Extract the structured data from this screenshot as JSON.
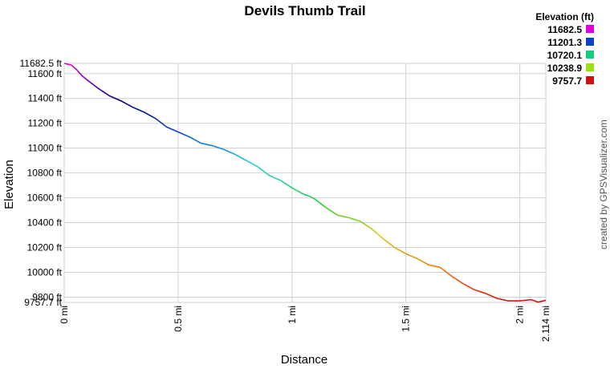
{
  "chart_data": {
    "type": "line",
    "title": "Devils Thumb Trail",
    "x_label": "Distance",
    "y_label": "Elevation",
    "credit": "created by GPSVisualizer.com",
    "x": [
      0,
      0.03,
      0.05,
      0.08,
      0.1,
      0.15,
      0.2,
      0.25,
      0.3,
      0.35,
      0.4,
      0.45,
      0.5,
      0.55,
      0.6,
      0.65,
      0.7,
      0.75,
      0.8,
      0.85,
      0.9,
      0.95,
      1.0,
      1.05,
      1.08,
      1.1,
      1.15,
      1.2,
      1.25,
      1.3,
      1.35,
      1.4,
      1.45,
      1.5,
      1.55,
      1.6,
      1.65,
      1.7,
      1.75,
      1.8,
      1.85,
      1.9,
      1.95,
      2.0,
      2.05,
      2.08,
      2.114
    ],
    "series": [
      {
        "name": "Elevation",
        "values": [
          11682.5,
          11670,
          11640,
          11580,
          11550,
          11480,
          11420,
          11380,
          11330,
          11290,
          11240,
          11170,
          11130,
          11090,
          11040,
          11020,
          10990,
          10950,
          10900,
          10850,
          10780,
          10740,
          10680,
          10630,
          10610,
          10590,
          10520,
          10460,
          10440,
          10410,
          10350,
          10270,
          10200,
          10150,
          10110,
          10060,
          10040,
          9970,
          9910,
          9860,
          9830,
          9790,
          9770,
          9770,
          9780,
          9760,
          9775
        ]
      }
    ],
    "xlim": [
      0,
      2.114
    ],
    "ylim": [
      9757.7,
      11682.5
    ],
    "xticks": [
      {
        "value": 0,
        "label": "0 mi"
      },
      {
        "value": 0.5,
        "label": "0.5 mi"
      },
      {
        "value": 1,
        "label": "1 mi"
      },
      {
        "value": 1.5,
        "label": "1.5 mi"
      },
      {
        "value": 2,
        "label": "2 mi"
      },
      {
        "value": 2.114,
        "label": "2.114 mi"
      }
    ],
    "yticks": [
      {
        "value": 9757.7,
        "label": "9757.7 ft"
      },
      {
        "value": 9800,
        "label": "9800 ft"
      },
      {
        "value": 10000,
        "label": "10000 ft"
      },
      {
        "value": 10200,
        "label": "10200 ft"
      },
      {
        "value": 10400,
        "label": "10400 ft"
      },
      {
        "value": 10600,
        "label": "10600 ft"
      },
      {
        "value": 10800,
        "label": "10800 ft"
      },
      {
        "value": 11000,
        "label": "11000 ft"
      },
      {
        "value": 11200,
        "label": "11200 ft"
      },
      {
        "value": 11400,
        "label": "11400 ft"
      },
      {
        "value": 11600,
        "label": "11600 ft"
      },
      {
        "value": 11682.5,
        "label": "11682.5 ft"
      }
    ],
    "grid": true,
    "legend": {
      "title": "Elevation (ft)",
      "values": [
        11682.5,
        11201.3,
        10720.1,
        10238.9,
        9757.7
      ],
      "colors": [
        "#e000e0",
        "#1040d0",
        "#10d080",
        "#a0e010",
        "#d01010"
      ]
    }
  }
}
